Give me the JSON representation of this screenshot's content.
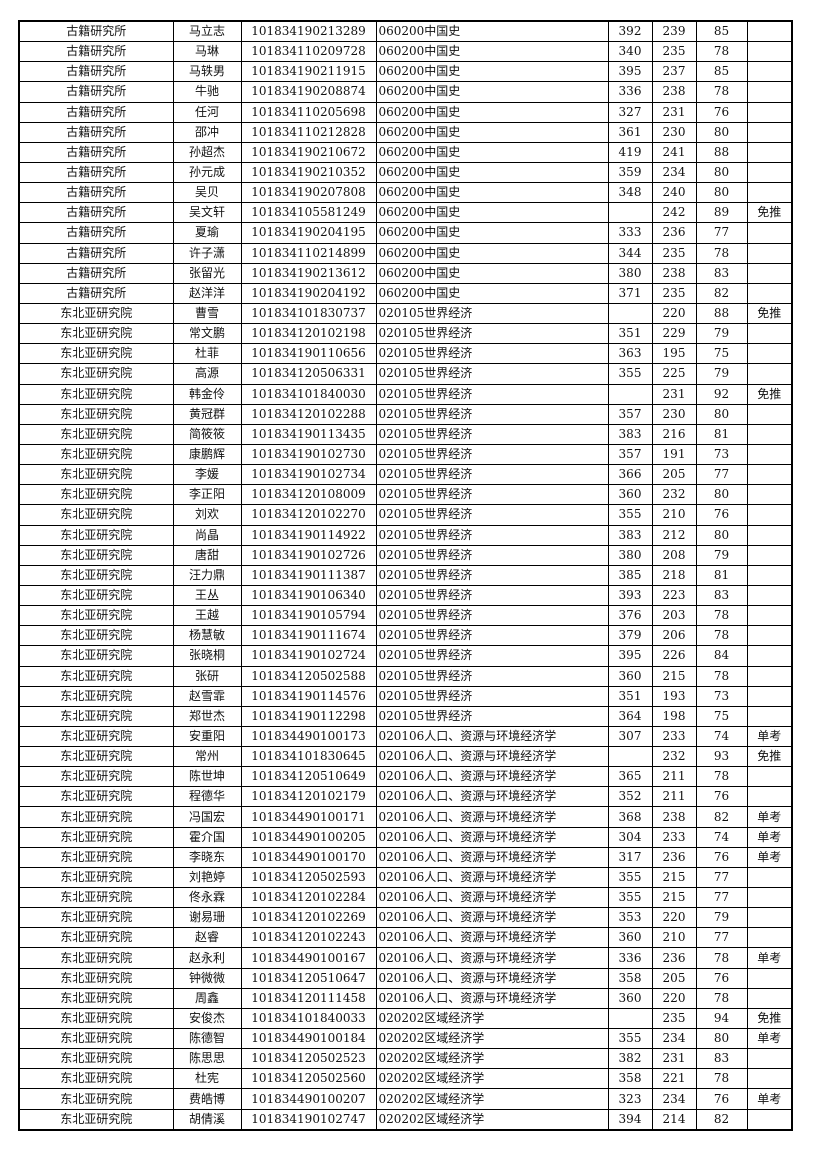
{
  "departments": [
    "古籍研究所",
    "东北亚研究院"
  ],
  "rows": [
    [
      "古籍研究所",
      "马立志",
      "101834190213289",
      "060200中国史",
      "392",
      "239",
      "85",
      ""
    ],
    [
      "古籍研究所",
      "马琳",
      "101834110209728",
      "060200中国史",
      "340",
      "235",
      "78",
      ""
    ],
    [
      "古籍研究所",
      "马轶男",
      "101834190211915",
      "060200中国史",
      "395",
      "237",
      "85",
      ""
    ],
    [
      "古籍研究所",
      "牛驰",
      "101834190208874",
      "060200中国史",
      "336",
      "238",
      "78",
      ""
    ],
    [
      "古籍研究所",
      "任河",
      "101834110205698",
      "060200中国史",
      "327",
      "231",
      "76",
      ""
    ],
    [
      "古籍研究所",
      "邵冲",
      "101834110212828",
      "060200中国史",
      "361",
      "230",
      "80",
      ""
    ],
    [
      "古籍研究所",
      "孙超杰",
      "101834190210672",
      "060200中国史",
      "419",
      "241",
      "88",
      ""
    ],
    [
      "古籍研究所",
      "孙元成",
      "101834190210352",
      "060200中国史",
      "359",
      "234",
      "80",
      ""
    ],
    [
      "古籍研究所",
      "吴贝",
      "101834190207808",
      "060200中国史",
      "348",
      "240",
      "80",
      ""
    ],
    [
      "古籍研究所",
      "吴文轩",
      "101834105581249",
      "060200中国史",
      "",
      "242",
      "89",
      "免推"
    ],
    [
      "古籍研究所",
      "夏瑜",
      "101834190204195",
      "060200中国史",
      "333",
      "236",
      "77",
      ""
    ],
    [
      "古籍研究所",
      "许子潇",
      "101834110214899",
      "060200中国史",
      "344",
      "235",
      "78",
      ""
    ],
    [
      "古籍研究所",
      "张留光",
      "101834190213612",
      "060200中国史",
      "380",
      "238",
      "83",
      ""
    ],
    [
      "古籍研究所",
      "赵洋洋",
      "101834190204192",
      "060200中国史",
      "371",
      "235",
      "82",
      ""
    ],
    [
      "东北亚研究院",
      "曹雪",
      "101834101830737",
      "020105世界经济",
      "",
      "220",
      "88",
      "免推"
    ],
    [
      "东北亚研究院",
      "常文鹏",
      "101834120102198",
      "020105世界经济",
      "351",
      "229",
      "79",
      ""
    ],
    [
      "东北亚研究院",
      "杜菲",
      "101834190110656",
      "020105世界经济",
      "363",
      "195",
      "75",
      ""
    ],
    [
      "东北亚研究院",
      "高源",
      "101834120506331",
      "020105世界经济",
      "355",
      "225",
      "79",
      ""
    ],
    [
      "东北亚研究院",
      "韩金伶",
      "101834101840030",
      "020105世界经济",
      "",
      "231",
      "92",
      "免推"
    ],
    [
      "东北亚研究院",
      "黄冠群",
      "101834120102288",
      "020105世界经济",
      "357",
      "230",
      "80",
      ""
    ],
    [
      "东北亚研究院",
      "简筱筱",
      "101834190113435",
      "020105世界经济",
      "383",
      "216",
      "81",
      ""
    ],
    [
      "东北亚研究院",
      "康鹏辉",
      "101834190102730",
      "020105世界经济",
      "357",
      "191",
      "73",
      ""
    ],
    [
      "东北亚研究院",
      "李媛",
      "101834190102734",
      "020105世界经济",
      "366",
      "205",
      "77",
      ""
    ],
    [
      "东北亚研究院",
      "李正阳",
      "101834120108009",
      "020105世界经济",
      "360",
      "232",
      "80",
      ""
    ],
    [
      "东北亚研究院",
      "刘欢",
      "101834120102270",
      "020105世界经济",
      "355",
      "210",
      "76",
      ""
    ],
    [
      "东北亚研究院",
      "尚晶",
      "101834190114922",
      "020105世界经济",
      "383",
      "212",
      "80",
      ""
    ],
    [
      "东北亚研究院",
      "唐甜",
      "101834190102726",
      "020105世界经济",
      "380",
      "208",
      "79",
      ""
    ],
    [
      "东北亚研究院",
      "汪力鼎",
      "101834190111387",
      "020105世界经济",
      "385",
      "218",
      "81",
      ""
    ],
    [
      "东北亚研究院",
      "王丛",
      "101834190106340",
      "020105世界经济",
      "393",
      "223",
      "83",
      ""
    ],
    [
      "东北亚研究院",
      "王越",
      "101834190105794",
      "020105世界经济",
      "376",
      "203",
      "78",
      ""
    ],
    [
      "东北亚研究院",
      "杨慧敏",
      "101834190111674",
      "020105世界经济",
      "379",
      "206",
      "78",
      ""
    ],
    [
      "东北亚研究院",
      "张晓桐",
      "101834190102724",
      "020105世界经济",
      "395",
      "226",
      "84",
      ""
    ],
    [
      "东北亚研究院",
      "张研",
      "101834120502588",
      "020105世界经济",
      "360",
      "215",
      "78",
      ""
    ],
    [
      "东北亚研究院",
      "赵雪霏",
      "101834190114576",
      "020105世界经济",
      "351",
      "193",
      "73",
      ""
    ],
    [
      "东北亚研究院",
      "郑世杰",
      "101834190112298",
      "020105世界经济",
      "364",
      "198",
      "75",
      ""
    ],
    [
      "东北亚研究院",
      "安重阳",
      "101834490100173",
      "020106人口、资源与环境经济学",
      "307",
      "233",
      "74",
      "单考"
    ],
    [
      "东北亚研究院",
      "常州",
      "101834101830645",
      "020106人口、资源与环境经济学",
      "",
      "232",
      "93",
      "免推"
    ],
    [
      "东北亚研究院",
      "陈世坤",
      "101834120510649",
      "020106人口、资源与环境经济学",
      "365",
      "211",
      "78",
      ""
    ],
    [
      "东北亚研究院",
      "程德华",
      "101834120102179",
      "020106人口、资源与环境经济学",
      "352",
      "211",
      "76",
      ""
    ],
    [
      "东北亚研究院",
      "冯国宏",
      "101834490100171",
      "020106人口、资源与环境经济学",
      "368",
      "238",
      "82",
      "单考"
    ],
    [
      "东北亚研究院",
      "霍介国",
      "101834490100205",
      "020106人口、资源与环境经济学",
      "304",
      "233",
      "74",
      "单考"
    ],
    [
      "东北亚研究院",
      "李晓东",
      "101834490100170",
      "020106人口、资源与环境经济学",
      "317",
      "236",
      "76",
      "单考"
    ],
    [
      "东北亚研究院",
      "刘艳婷",
      "101834120502593",
      "020106人口、资源与环境经济学",
      "355",
      "215",
      "77",
      ""
    ],
    [
      "东北亚研究院",
      "佟永霖",
      "101834120102284",
      "020106人口、资源与环境经济学",
      "355",
      "215",
      "77",
      ""
    ],
    [
      "东北亚研究院",
      "谢易珊",
      "101834120102269",
      "020106人口、资源与环境经济学",
      "353",
      "220",
      "79",
      ""
    ],
    [
      "东北亚研究院",
      "赵睿",
      "101834120102243",
      "020106人口、资源与环境经济学",
      "360",
      "210",
      "77",
      ""
    ],
    [
      "东北亚研究院",
      "赵永利",
      "101834490100167",
      "020106人口、资源与环境经济学",
      "336",
      "236",
      "78",
      "单考"
    ],
    [
      "东北亚研究院",
      "钟微微",
      "101834120510647",
      "020106人口、资源与环境经济学",
      "358",
      "205",
      "76",
      ""
    ],
    [
      "东北亚研究院",
      "周鑫",
      "101834120111458",
      "020106人口、资源与环境经济学",
      "360",
      "220",
      "78",
      ""
    ],
    [
      "东北亚研究院",
      "安俊杰",
      "101834101840033",
      "020202区域经济学",
      "",
      "235",
      "94",
      "免推"
    ],
    [
      "东北亚研究院",
      "陈德智",
      "101834490100184",
      "020202区域经济学",
      "355",
      "234",
      "80",
      "单考"
    ],
    [
      "东北亚研究院",
      "陈思思",
      "101834120502523",
      "020202区域经济学",
      "382",
      "231",
      "83",
      ""
    ],
    [
      "东北亚研究院",
      "杜宪",
      "101834120502560",
      "020202区域经济学",
      "358",
      "221",
      "78",
      ""
    ],
    [
      "东北亚研究院",
      "费皓博",
      "101834490100207",
      "020202区域经济学",
      "323",
      "234",
      "76",
      "单考"
    ],
    [
      "东北亚研究院",
      "胡倩溪",
      "101834190102747",
      "020202区域经济学",
      "394",
      "214",
      "82",
      ""
    ]
  ]
}
